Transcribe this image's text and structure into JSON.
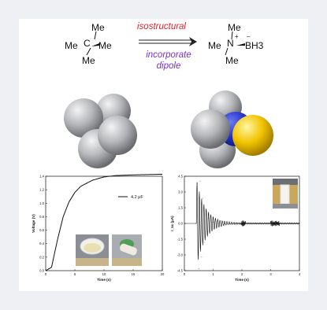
{
  "reaction": {
    "left": {
      "top": "Me",
      "left": "Me",
      "center": "C",
      "right": "Me",
      "bottom": "Me"
    },
    "right": {
      "top": "Me",
      "left": "Me",
      "center": "N",
      "charge_plus": "+",
      "charge_minus": "–",
      "right": "BH3",
      "bottom": "Me"
    },
    "arrow_top": "isostructural",
    "arrow_bottom_1": "incorporate",
    "arrow_bottom_2": "dipole"
  },
  "colors": {
    "red_text": "#e0202a",
    "purple_text": "#7b2fc9",
    "sphere_gray": "#a9aaad",
    "sphere_blue": "#2233cc",
    "sphere_yellow": "#f2c400"
  },
  "chart_data": [
    {
      "type": "line",
      "xlabel": "Time (s)",
      "ylabel": "Voltage (V)",
      "xlim": [
        0,
        20
      ],
      "ylim": [
        0,
        1.4
      ],
      "xticks": [
        "0",
        "5",
        "10",
        "15",
        "20"
      ],
      "yticks": [
        "0.0",
        "0.2",
        "0.4",
        "0.6",
        "0.8",
        "1.0",
        "1.2",
        "1.4"
      ],
      "series": [
        {
          "name": "4.2 μF",
          "x": [
            0,
            1,
            2,
            3,
            4,
            5,
            6,
            8,
            10,
            12,
            15,
            20
          ],
          "y": [
            0.0,
            0.05,
            0.45,
            0.8,
            1.02,
            1.16,
            1.25,
            1.34,
            1.39,
            1.41,
            1.42,
            1.43
          ]
        }
      ],
      "legend": "top-right"
    },
    {
      "type": "line",
      "xlabel": "Time (s)",
      "ylabel": "I_sc (μA)",
      "xlim": [
        0,
        4
      ],
      "ylim": [
        -4.5,
        4.5
      ],
      "xticks": [
        "0",
        "1",
        "2",
        "3",
        "4"
      ],
      "yticks": [
        "4.5",
        "3.0",
        "1.5",
        "0.0",
        "-1.5",
        "-3.0",
        "-4.5"
      ],
      "series": [
        {
          "x": [
            0,
            0.4,
            0.45,
            0.5,
            0.55,
            0.6,
            0.65,
            0.7,
            0.75,
            0.8,
            0.85,
            0.9,
            1.0,
            1.2,
            1.4,
            2.0,
            2.05,
            2.1,
            3.0,
            3.1,
            3.2,
            4.0
          ],
          "y": [
            0,
            0,
            3.8,
            -4.3,
            4.0,
            -3.2,
            2.4,
            -1.8,
            1.2,
            -0.8,
            0.5,
            -0.3,
            0.1,
            0,
            0,
            0.2,
            -0.2,
            0,
            0.2,
            -0.2,
            0,
            0
          ]
        }
      ]
    }
  ]
}
